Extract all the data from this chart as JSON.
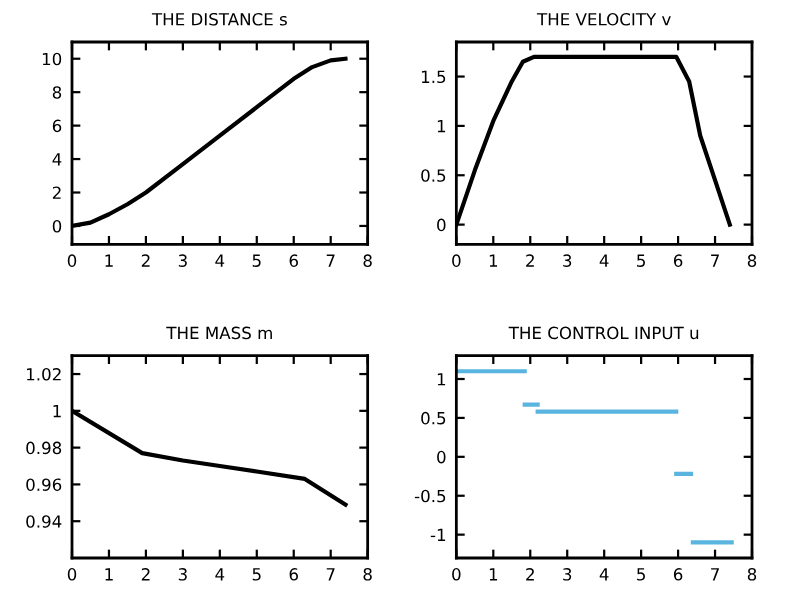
{
  "chart_data": [
    {
      "type": "line",
      "title": "THE DISTANCE s",
      "xlim": [
        0,
        8
      ],
      "xticks": [
        0,
        1,
        2,
        3,
        4,
        5,
        6,
        7,
        8
      ],
      "ylim": [
        -1.1,
        11
      ],
      "yticks": [
        0,
        2,
        4,
        6,
        8,
        10
      ],
      "grid": false,
      "legend": false,
      "series": [
        {
          "color": "#000000",
          "x": [
            0,
            0.5,
            1,
            1.5,
            2,
            3,
            4,
            5,
            6,
            6.5,
            7,
            7.4
          ],
          "values": [
            0,
            0.2,
            0.7,
            1.3,
            2.0,
            3.7,
            5.4,
            7.1,
            8.8,
            9.5,
            9.9,
            10
          ]
        }
      ]
    },
    {
      "type": "line",
      "title": "THE VELOCITY v",
      "xlim": [
        0,
        8
      ],
      "xticks": [
        0,
        1,
        2,
        3,
        4,
        5,
        6,
        7,
        8
      ],
      "ylim": [
        -0.2,
        1.85
      ],
      "yticks": [
        0,
        0.5,
        1,
        1.5
      ],
      "grid": false,
      "legend": false,
      "series": [
        {
          "color": "#000000",
          "x": [
            0,
            0.5,
            1,
            1.5,
            1.8,
            2.1,
            5.95,
            6.3,
            6.6,
            7.0,
            7.4
          ],
          "values": [
            0,
            0.55,
            1.05,
            1.45,
            1.65,
            1.7,
            1.7,
            1.45,
            0.9,
            0.45,
            0
          ]
        }
      ]
    },
    {
      "type": "line",
      "title": "THE MASS m",
      "xlim": [
        0,
        8
      ],
      "xticks": [
        0,
        1,
        2,
        3,
        4,
        5,
        6,
        7,
        8
      ],
      "ylim": [
        0.92,
        1.03
      ],
      "yticks": [
        0.94,
        0.96,
        0.98,
        1,
        1.02
      ],
      "grid": false,
      "legend": false,
      "series": [
        {
          "color": "#000000",
          "x": [
            0,
            1.9,
            3,
            4,
            5,
            6.3,
            7.4
          ],
          "values": [
            1.0,
            0.977,
            0.973,
            0.97,
            0.967,
            0.963,
            0.949
          ]
        }
      ]
    },
    {
      "type": "line",
      "title": "THE CONTROL INPUT u",
      "xlim": [
        0,
        8
      ],
      "xticks": [
        0,
        1,
        2,
        3,
        4,
        5,
        6,
        7,
        8
      ],
      "ylim": [
        -1.3,
        1.3
      ],
      "yticks": [
        -1,
        -0.5,
        0,
        0.5,
        1
      ],
      "grid": false,
      "legend": false,
      "series": [
        {
          "color": "#5ab4e0",
          "x": [
            0,
            1.85
          ],
          "values": [
            1.1,
            1.1
          ]
        },
        {
          "color": "#5ab4e0",
          "x": [
            1.85,
            2.2
          ],
          "values": [
            0.67,
            0.67
          ]
        },
        {
          "color": "#5ab4e0",
          "x": [
            2.2,
            5.95
          ],
          "values": [
            0.58,
            0.58
          ]
        },
        {
          "color": "#5ab4e0",
          "x": [
            5.95,
            6.35
          ],
          "values": [
            -0.22,
            -0.22
          ]
        },
        {
          "color": "#5ab4e0",
          "x": [
            6.4,
            7.45
          ],
          "values": [
            -1.1,
            -1.1
          ]
        }
      ]
    }
  ]
}
